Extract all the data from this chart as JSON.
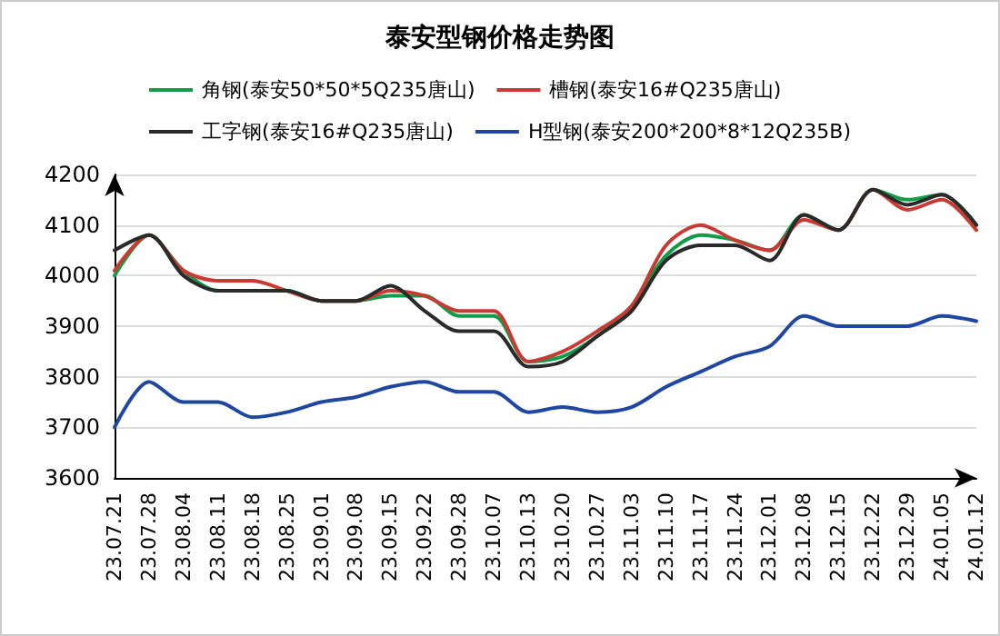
{
  "chart_data": {
    "type": "line",
    "title": "泰安型钢价格走势图",
    "categories": [
      "23.07.21",
      "23.07.28",
      "23.08.04",
      "23.08.11",
      "23.08.18",
      "23.08.25",
      "23.09.01",
      "23.09.08",
      "23.09.15",
      "23.09.22",
      "23.09.28",
      "23.10.07",
      "23.10.13",
      "23.10.20",
      "23.10.27",
      "23.11.03",
      "23.11.10",
      "23.11.17",
      "23.11.24",
      "23.12.01",
      "23.12.08",
      "23.12.15",
      "23.12.22",
      "23.12.29",
      "24.01.05",
      "24.01.12"
    ],
    "series": [
      {
        "name": "角钢(泰安50*50*5Q235唐山)",
        "color": "#109c48",
        "values": [
          4000,
          4080,
          4010,
          3970,
          3970,
          3970,
          3950,
          3950,
          3960,
          3960,
          3920,
          3920,
          3830,
          3840,
          3880,
          3940,
          4040,
          4080,
          4070,
          4050,
          4120,
          4090,
          4170,
          4150,
          4160,
          4100
        ]
      },
      {
        "name": "槽钢(泰安16#Q235唐山)",
        "color": "#c83a32",
        "values": [
          4010,
          4080,
          4010,
          3990,
          3990,
          3970,
          3950,
          3950,
          3970,
          3960,
          3930,
          3930,
          3830,
          3850,
          3890,
          3940,
          4060,
          4100,
          4070,
          4050,
          4110,
          4090,
          4170,
          4130,
          4150,
          4090
        ]
      },
      {
        "name": "工字钢(泰安16#Q235唐山)",
        "color": "#2a2a2a",
        "values": [
          4050,
          4080,
          4000,
          3970,
          3970,
          3970,
          3950,
          3950,
          3980,
          3930,
          3890,
          3890,
          3820,
          3830,
          3880,
          3930,
          4030,
          4060,
          4060,
          4030,
          4120,
          4090,
          4170,
          4140,
          4160,
          4100
        ]
      },
      {
        "name": "H型钢(泰安200*200*8*12Q235B)",
        "color": "#1f47a0",
        "values": [
          3700,
          3790,
          3750,
          3750,
          3720,
          3730,
          3750,
          3760,
          3780,
          3790,
          3770,
          3770,
          3730,
          3740,
          3730,
          3740,
          3780,
          3810,
          3840,
          3860,
          3920,
          3900,
          3900,
          3900,
          3920,
          3910
        ]
      }
    ],
    "ylim": [
      3600,
      4200
    ],
    "yticks": [
      3600,
      3700,
      3800,
      3900,
      4000,
      4100,
      4200
    ],
    "grid": "y",
    "legend": "top",
    "marker": "none",
    "line_style": "solid"
  }
}
